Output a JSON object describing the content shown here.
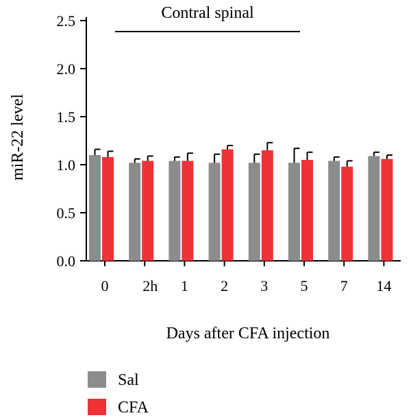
{
  "chart_data": {
    "type": "bar",
    "title": "Contral spinal",
    "xlabel": "Days after CFA injection",
    "ylabel": "miR-22 level",
    "ylim": [
      0,
      2.5
    ],
    "yticks": [
      "0.0",
      "0.5",
      "1.0",
      "1.5",
      "2.0",
      "2.5"
    ],
    "categories": [
      "0",
      "2h",
      "1",
      "2",
      "3",
      "5",
      "7",
      "14"
    ],
    "series": [
      {
        "name": "Sal",
        "color": "#8a8c8e",
        "values": [
          1.1,
          1.02,
          1.04,
          1.02,
          1.02,
          1.02,
          1.04,
          1.09
        ],
        "errors": [
          0.06,
          0.04,
          0.04,
          0.09,
          0.09,
          0.15,
          0.04,
          0.04
        ]
      },
      {
        "name": "CFA",
        "color": "#ee3338",
        "values": [
          1.08,
          1.04,
          1.04,
          1.16,
          1.15,
          1.05,
          0.98,
          1.06
        ],
        "errors": [
          0.06,
          0.05,
          0.08,
          0.04,
          0.08,
          0.08,
          0.06,
          0.04
        ]
      }
    ],
    "legend_position": "bottom-left",
    "grid": false
  }
}
